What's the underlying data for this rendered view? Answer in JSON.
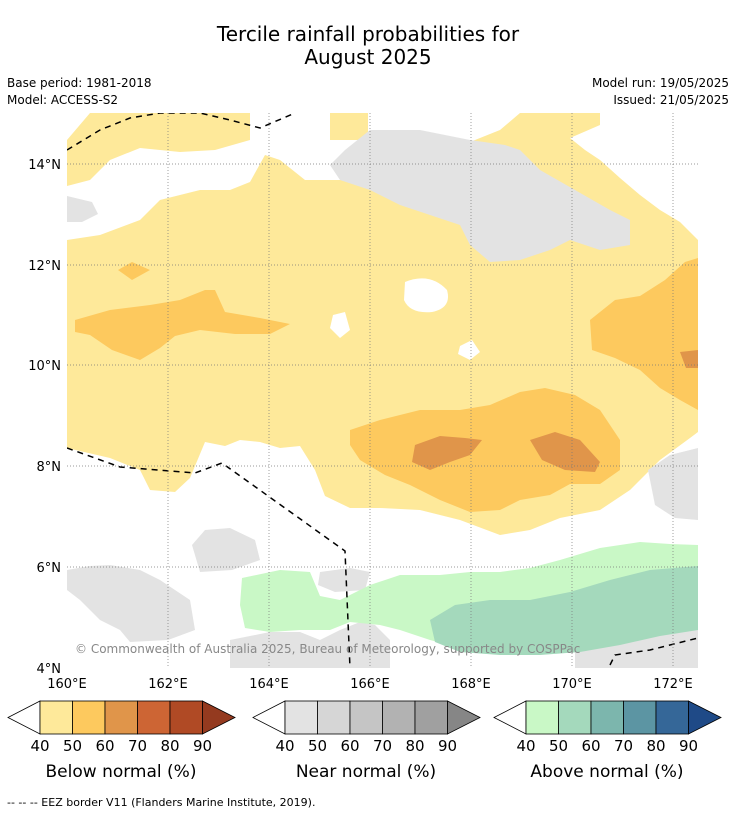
{
  "title": {
    "line1": "Tercile rainfall probabilities for",
    "line2": "August 2025"
  },
  "meta": {
    "base_period": "Base period: 1981-2018",
    "model": "Model: ACCESS-S2",
    "model_run": "Model run: 19/05/2025",
    "issued": "Issued: 21/05/2025"
  },
  "map": {
    "lat_labels": [
      "14°N",
      "12°N",
      "10°N",
      "8°N",
      "6°N",
      "4°N"
    ],
    "lon_labels": [
      "160°E",
      "162°E",
      "164°E",
      "166°E",
      "168°E",
      "170°E",
      "172°E"
    ],
    "copyright": "© Commonwealth of Australia 2025, Bureau of Meteorology, supported by COSPPac"
  },
  "colorbars": [
    {
      "label": "Below normal (%)",
      "ticks": [
        "40",
        "50",
        "60",
        "70",
        "80",
        "90"
      ],
      "low_color": "#ffffff",
      "colors": [
        "#fee99a",
        "#fdc95e",
        "#e0954a",
        "#cd6534",
        "#b04a25"
      ],
      "high_color": "#943a1f"
    },
    {
      "label": "Near normal (%)",
      "ticks": [
        "40",
        "50",
        "60",
        "70",
        "80",
        "90"
      ],
      "low_color": "#ffffff",
      "colors": [
        "#e3e3e3",
        "#d6d6d6",
        "#c5c5c5",
        "#b2b2b2",
        "#a0a0a0"
      ],
      "high_color": "#868686"
    },
    {
      "label": "Above normal (%)",
      "ticks": [
        "40",
        "50",
        "60",
        "70",
        "80",
        "90"
      ],
      "low_color": "#ffffff",
      "colors": [
        "#c9f8c6",
        "#a4d9bc",
        "#7cb6ad",
        "#5c95a3",
        "#356798"
      ],
      "high_color": "#1f4a87"
    }
  ],
  "footer": "--  --  -- EEZ border V11 (Flanders Marine Institute, 2019)."
}
